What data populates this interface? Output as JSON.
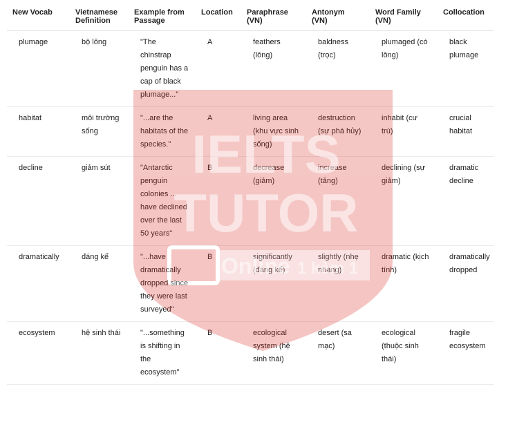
{
  "table": {
    "headers": [
      "New Vocab",
      "Vietnamese Definition",
      "Example from Passage",
      "Location",
      "Paraphrase (VN)",
      "Antonym (VN)",
      "Word Family (VN)",
      "Collocation"
    ],
    "rows": [
      [
        "plumage",
        "bộ lông",
        "\"The chinstrap penguin has a cap of black plumage...\"",
        "A",
        "feathers (lông)",
        "baldness (trọc)",
        "plumaged (có lông)",
        "black plumage"
      ],
      [
        "habitat",
        "môi trường sống",
        "\"...are the habitats of the species.\"",
        "A",
        "living area (khu vực sinh sống)",
        "destruction (sự phá hủy)",
        "inhabit (cư trú)",
        "crucial habitat"
      ],
      [
        "decline",
        "giảm sút",
        "\"Antarctic penguin colonies ... have declined over the last 50 years\"",
        "B",
        "decrease (giảm)",
        "increase (tăng)",
        "declining (sự giảm)",
        "dramatic decline"
      ],
      [
        "dramatically",
        "đáng kể",
        "\"...have dramatically dropped since they were last surveyed\"",
        "B",
        "significantly (đáng kể)",
        "slightly (nhẹ nhàng)",
        "dramatic (kịch tính)",
        "dramatically dropped"
      ],
      [
        "ecosystem",
        "hệ sinh thái",
        "\"...something is shifting in the ecosystem\"",
        "B",
        "ecological system (hệ sinh thái)",
        "desert (sa mạc)",
        "ecological (thuộc sinh thái)",
        "fragile ecosystem"
      ]
    ]
  },
  "watermark": {
    "brand_top": "IELTS",
    "brand_bottom": "TUTOR",
    "online": "Online",
    "tagline": "1 kèm 1"
  }
}
